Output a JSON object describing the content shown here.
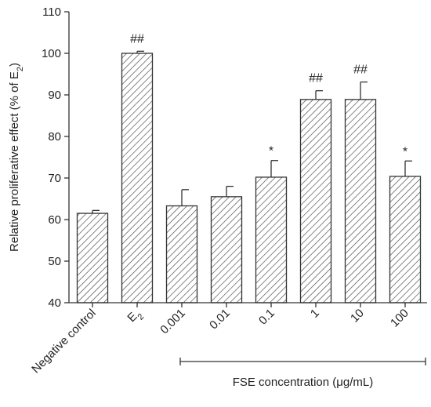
{
  "chart_data": {
    "type": "bar",
    "categories": [
      "Negative control",
      "E2",
      "0.001",
      "0.01",
      "0.1",
      "1",
      "10",
      "100"
    ],
    "values": [
      61.5,
      100.0,
      63.3,
      65.5,
      70.2,
      88.9,
      88.9,
      70.4
    ],
    "error": [
      0.7,
      0.5,
      3.9,
      2.5,
      4.0,
      2.1,
      4.2,
      3.7
    ],
    "significance": [
      "",
      "##",
      "",
      "",
      "*",
      "##",
      "##",
      "*"
    ],
    "ylabel": "Relative proliferative effect (% of E2)",
    "ylim": [
      40,
      110
    ],
    "yticks": [
      40,
      50,
      60,
      70,
      80,
      90,
      100,
      110
    ],
    "group_label": "FSE concentration (μg/mL)",
    "group_categories": [
      "0.001",
      "0.01",
      "0.1",
      "1",
      "10",
      "100"
    ],
    "bar_fill": "hatched",
    "colors": {
      "stroke": "#333333",
      "hatch": "#444444",
      "background": "#ffffff"
    },
    "grid": false,
    "legend": "none"
  }
}
